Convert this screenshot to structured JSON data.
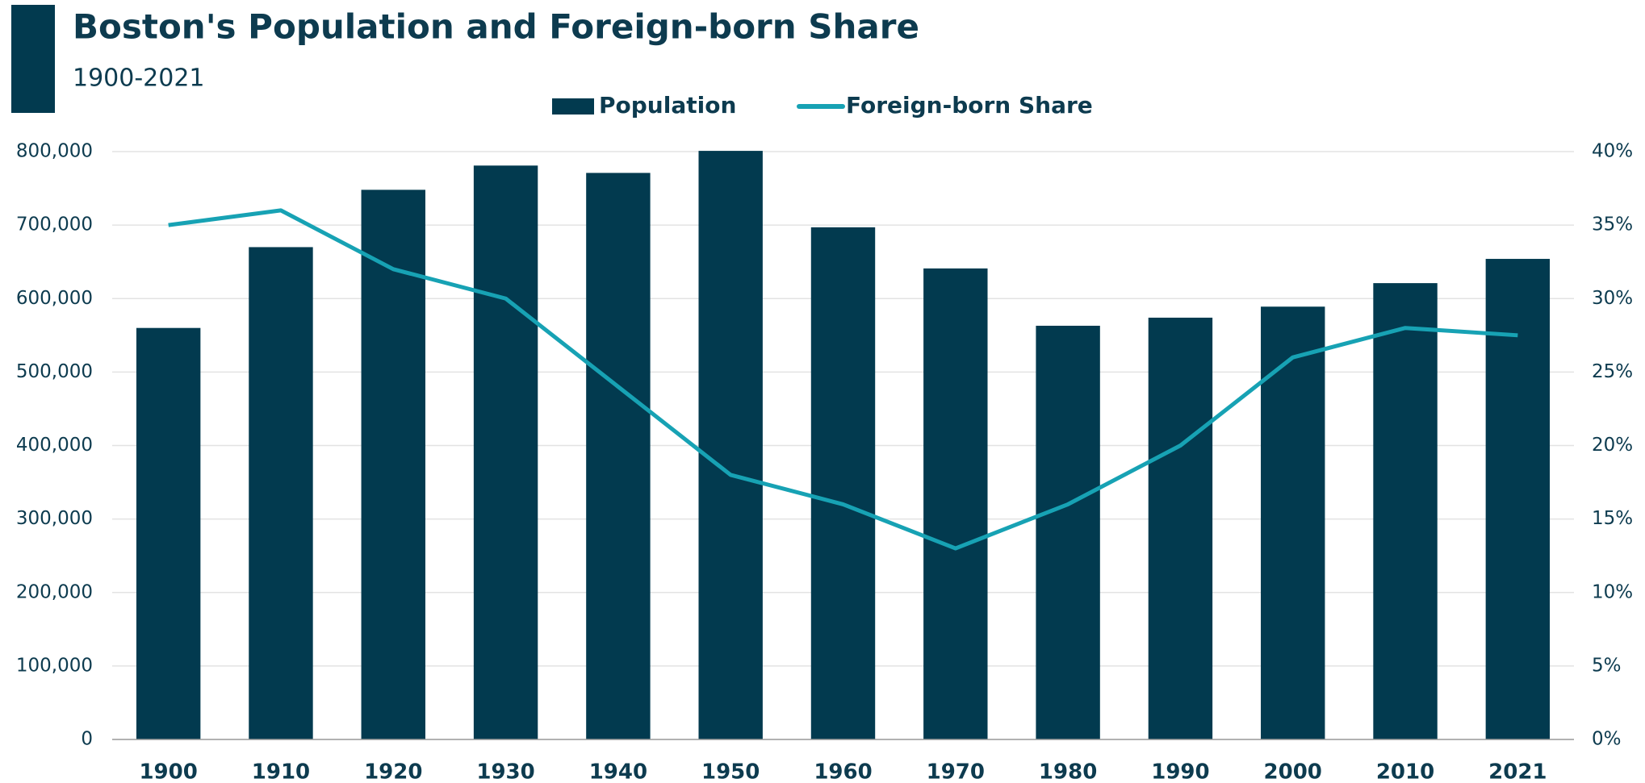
{
  "chart_data": {
    "type": "bar_line",
    "title": "Boston's Population and Foreign-born Share",
    "subtitle": "1900-2021",
    "categories": [
      "1900",
      "1910",
      "1920",
      "1930",
      "1940",
      "1950",
      "1960",
      "1970",
      "1980",
      "1990",
      "2000",
      "2010",
      "2021"
    ],
    "series": [
      {
        "name": "Population",
        "type": "bar",
        "color": "#023a4f",
        "values": [
          560000,
          670000,
          748000,
          781000,
          771000,
          801000,
          697000,
          641000,
          563000,
          574000,
          589000,
          621000,
          654000
        ]
      },
      {
        "name": "Foreign-born Share",
        "type": "line",
        "color": "#17a2b4",
        "axis": "y2",
        "values": [
          35,
          36,
          32,
          30,
          24,
          18,
          16,
          13,
          16,
          20,
          26,
          28,
          27.5
        ]
      }
    ],
    "ylim": [
      0,
      800000
    ],
    "yticks": [
      0,
      {
        "value": 100000,
        "label": "100,000"
      },
      {
        "value": 200000,
        "label": "200,000"
      },
      {
        "value": 300000,
        "label": "300,000"
      },
      {
        "value": 400000,
        "label": "400,000"
      },
      {
        "value": 500000,
        "label": "500,000"
      },
      {
        "value": 600000,
        "label": "600,000"
      },
      {
        "value": 700000,
        "label": "700,000"
      },
      {
        "value": 800000,
        "label": "800,000"
      }
    ],
    "y2lim": [
      0,
      40
    ],
    "y2ticks": [
      {
        "value": 0,
        "label": "0%"
      },
      {
        "value": 5,
        "label": "5%"
      },
      {
        "value": 10,
        "label": "10%"
      },
      {
        "value": 15,
        "label": "15%"
      },
      {
        "value": 20,
        "label": "20%"
      },
      {
        "value": 25,
        "label": "25%"
      },
      {
        "value": 30,
        "label": "30%"
      },
      {
        "value": 35,
        "label": "35%"
      },
      {
        "value": 40,
        "label": "40%"
      }
    ],
    "grid": true,
    "legend": "top"
  }
}
